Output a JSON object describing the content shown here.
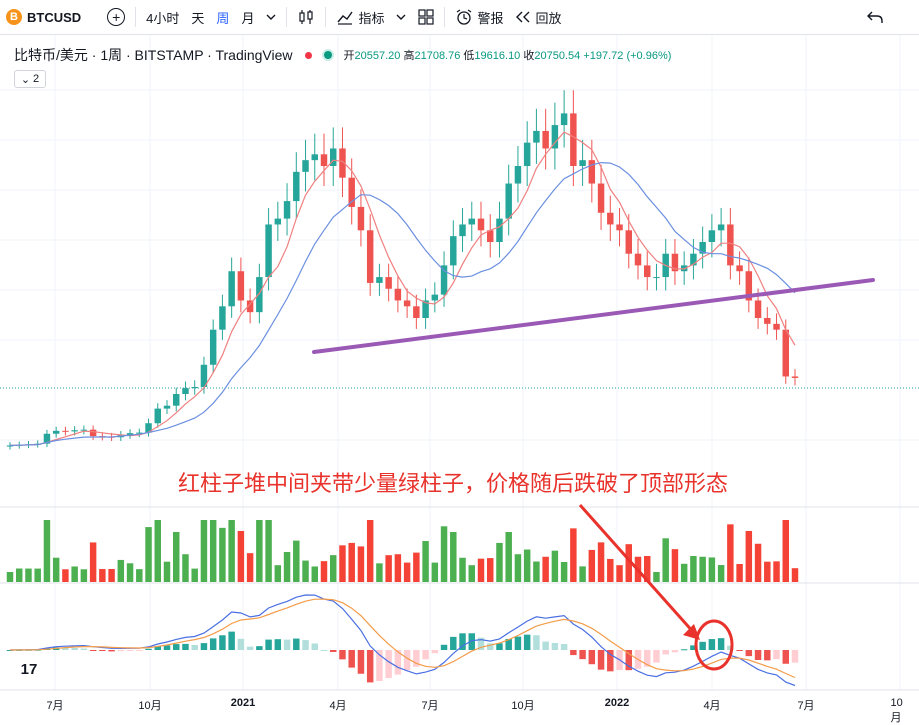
{
  "toolbar": {
    "symbol_icon": "B",
    "symbol": "BTCUSD",
    "add_icon": "+",
    "intervals": [
      "4小时",
      "天",
      "周",
      "月"
    ],
    "active_interval": "周",
    "chart_type_icon": "candles-icon",
    "indicators_label": "指标",
    "layout_icon": "grid-icon",
    "alert_label": "警报",
    "replay_label": "回放",
    "undo_icon": "undo-icon"
  },
  "legend": {
    "title": "比特币/美元 · 1周 · BITSTAMP · TradingView",
    "open_label": "开",
    "open": "20557.20",
    "high_label": "高",
    "high": "21708.76",
    "low_label": "低",
    "low": "19616.10",
    "close_label": "收",
    "close": "20750.54",
    "change": "+197.72 (+0.96%)",
    "collapsed_count": "2"
  },
  "annotation": "红柱子堆中间夹带少量绿柱子，价格随后跌破了顶部形态",
  "tv_logo": "17",
  "x_axis": [
    {
      "label": "7月",
      "bold": false
    },
    {
      "label": "10月",
      "bold": false
    },
    {
      "label": "2021",
      "bold": true
    },
    {
      "label": "4月",
      "bold": false
    },
    {
      "label": "7月",
      "bold": false
    },
    {
      "label": "10月",
      "bold": false
    },
    {
      "label": "2022",
      "bold": true
    },
    {
      "label": "4月",
      "bold": false
    },
    {
      "label": "7月",
      "bold": false
    },
    {
      "label": "10月",
      "bold": false
    }
  ],
  "colors": {
    "up": "#26a69a",
    "down": "#ef5350",
    "neckline": "#9b59b6",
    "annotation": "#e8322b",
    "ma_fast": "#f08080",
    "ma_slow": "#6b8fe0"
  },
  "chart_data": {
    "type": "candlestick",
    "symbol": "BTCUSD",
    "interval": "1W",
    "last_bar": {
      "open": 20557.2,
      "high": 21708.76,
      "low": 19616.1,
      "close": 20750.54,
      "change": 197.72,
      "change_pct": 0.96
    },
    "approx_weekly_close": [
      9200,
      9300,
      9400,
      9500,
      11200,
      11700,
      11600,
      11800,
      11900,
      10800,
      10700,
      10600,
      11000,
      11300,
      11400,
      13000,
      15500,
      16000,
      18000,
      19000,
      19200,
      23000,
      29000,
      33000,
      39000,
      34000,
      32000,
      38000,
      47000,
      48000,
      51000,
      56000,
      58000,
      59000,
      57000,
      60000,
      55000,
      50000,
      46000,
      37000,
      38000,
      36000,
      34000,
      33000,
      31000,
      34000,
      35000,
      40000,
      45000,
      47000,
      48000,
      46000,
      44000,
      48000,
      54000,
      57000,
      61000,
      63000,
      60000,
      64000,
      66000,
      57000,
      58000,
      54000,
      49000,
      47000,
      46000,
      42000,
      40000,
      38000,
      38000,
      42000,
      39000,
      40000,
      42000,
      44000,
      46000,
      47000,
      40000,
      39000,
      34000,
      31000,
      30000,
      29000,
      21000,
      20750
    ],
    "neckline": {
      "start_price": 30000,
      "end_price": 41000
    }
  }
}
